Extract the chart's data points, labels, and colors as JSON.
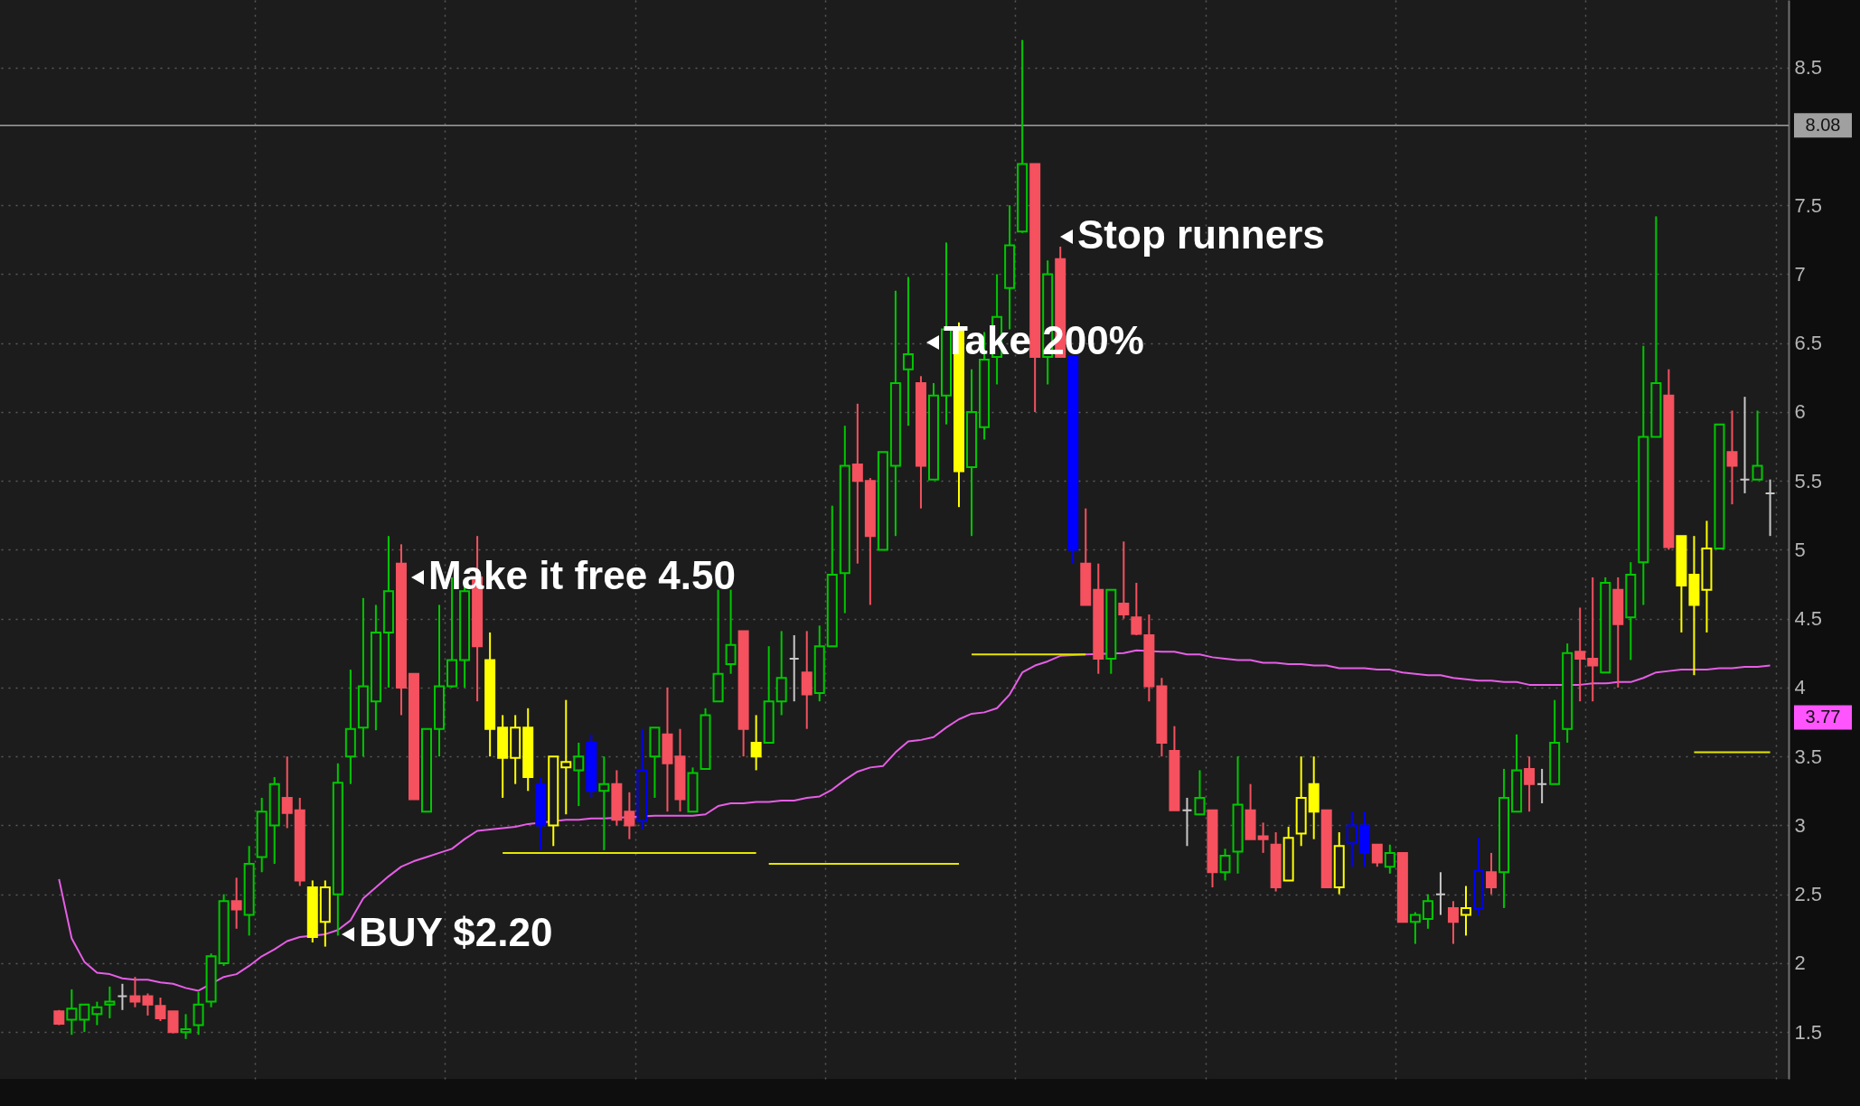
{
  "chart_data": {
    "type": "candlestick",
    "categories": [
      null,
      null,
      null,
      null,
      null,
      null,
      null,
      null,
      null,
      null,
      null,
      null,
      null,
      null,
      null,
      null,
      null,
      null,
      null,
      null,
      null,
      null,
      null,
      null,
      null,
      null,
      null,
      null,
      null,
      null,
      null,
      null,
      null,
      null,
      null,
      null,
      null,
      null,
      null,
      null,
      null,
      null,
      null,
      null,
      null,
      null,
      null,
      null,
      null,
      null,
      null,
      null,
      null,
      null,
      null,
      null,
      null,
      null,
      null,
      null,
      null,
      null,
      null,
      null,
      null,
      null,
      null,
      null,
      null,
      null,
      null,
      null,
      null,
      null,
      null,
      null,
      null,
      null,
      null,
      null,
      null,
      null,
      null,
      null,
      null,
      null,
      null,
      null,
      null,
      null,
      null,
      null,
      null,
      null,
      null,
      null,
      null,
      null,
      null,
      null,
      null,
      null,
      null,
      null,
      null,
      null,
      null,
      null,
      null,
      null,
      null,
      null,
      null,
      null,
      null,
      null,
      null,
      null,
      null,
      null,
      null,
      null,
      null,
      null,
      null,
      null,
      null,
      null,
      null,
      null,
      null,
      null,
      null,
      null,
      null,
      null
    ],
    "ohlc": [
      [
        1.65,
        1.66,
        1.55,
        1.56
      ],
      [
        1.59,
        1.81,
        1.48,
        1.67
      ],
      [
        1.59,
        1.7,
        1.5,
        1.7
      ],
      [
        1.63,
        1.72,
        1.55,
        1.68
      ],
      [
        1.7,
        1.83,
        1.6,
        1.72
      ],
      [
        1.76,
        1.85,
        1.66,
        1.76
      ],
      [
        1.76,
        1.9,
        1.68,
        1.72
      ],
      [
        1.76,
        1.78,
        1.62,
        1.7
      ],
      [
        1.69,
        1.75,
        1.58,
        1.6
      ],
      [
        1.65,
        1.65,
        1.49,
        1.5
      ],
      [
        1.5,
        1.63,
        1.45,
        1.52
      ],
      [
        1.55,
        1.79,
        1.48,
        1.7
      ],
      [
        1.72,
        2.07,
        1.68,
        2.05
      ],
      [
        2.0,
        2.5,
        1.98,
        2.45
      ],
      [
        2.45,
        2.62,
        2.25,
        2.39
      ],
      [
        2.35,
        2.85,
        2.2,
        2.72
      ],
      [
        2.77,
        3.2,
        2.66,
        3.1
      ],
      [
        3.0,
        3.35,
        2.72,
        3.3
      ],
      [
        3.2,
        3.5,
        2.98,
        3.09
      ],
      [
        3.11,
        3.2,
        2.56,
        2.6
      ],
      [
        2.55,
        2.6,
        2.15,
        2.19
      ],
      [
        2.3,
        2.6,
        2.12,
        2.55
      ],
      [
        2.5,
        3.45,
        2.2,
        3.31
      ],
      [
        3.5,
        4.13,
        3.3,
        3.7
      ],
      [
        3.71,
        4.65,
        3.5,
        4.01
      ],
      [
        3.9,
        4.6,
        3.69,
        4.4
      ],
      [
        4.4,
        5.1,
        4.0,
        4.7
      ],
      [
        4.9,
        5.04,
        3.8,
        4.0
      ],
      [
        4.1,
        4.1,
        3.19,
        3.19
      ],
      [
        3.1,
        3.7,
        3.1,
        3.7
      ],
      [
        3.7,
        4.6,
        3.5,
        4.01
      ],
      [
        4.01,
        4.8,
        4.0,
        4.2
      ],
      [
        4.2,
        4.75,
        4.0,
        4.7
      ],
      [
        4.8,
        5.1,
        3.9,
        4.3
      ],
      [
        4.2,
        4.4,
        3.5,
        3.7
      ],
      [
        3.71,
        3.8,
        3.2,
        3.49
      ],
      [
        3.49,
        3.8,
        3.3,
        3.71
      ],
      [
        3.71,
        3.85,
        3.25,
        3.35
      ],
      [
        3.3,
        3.35,
        2.82,
        3.0
      ],
      [
        3.0,
        3.5,
        2.85,
        3.5
      ],
      [
        3.42,
        3.91,
        3.08,
        3.46
      ],
      [
        3.4,
        3.6,
        3.14,
        3.5
      ],
      [
        3.6,
        3.66,
        3.2,
        3.25
      ],
      [
        3.25,
        3.5,
        2.82,
        3.3
      ],
      [
        3.3,
        3.4,
        3.0,
        3.04
      ],
      [
        3.1,
        3.24,
        2.9,
        3.0
      ],
      [
        3.03,
        3.7,
        2.97,
        3.4
      ],
      [
        3.5,
        3.71,
        3.2,
        3.71
      ],
      [
        3.66,
        4.0,
        3.1,
        3.45
      ],
      [
        3.5,
        3.7,
        3.1,
        3.19
      ],
      [
        3.1,
        3.42,
        3.1,
        3.38
      ],
      [
        3.41,
        3.85,
        3.41,
        3.8
      ],
      [
        3.9,
        4.71,
        3.9,
        4.1
      ],
      [
        4.17,
        4.71,
        4.1,
        4.31
      ],
      [
        4.41,
        4.41,
        3.5,
        3.7
      ],
      [
        3.6,
        3.8,
        3.4,
        3.5
      ],
      [
        3.6,
        4.3,
        3.6,
        3.9
      ],
      [
        3.9,
        4.41,
        3.8,
        4.07
      ],
      [
        4.21,
        4.38,
        3.9,
        4.21
      ],
      [
        4.11,
        4.41,
        3.7,
        3.95
      ],
      [
        3.96,
        4.45,
        3.9,
        4.3
      ],
      [
        4.3,
        5.32,
        4.3,
        4.82
      ],
      [
        4.83,
        5.9,
        4.54,
        5.61
      ],
      [
        5.62,
        6.06,
        4.9,
        5.5
      ],
      [
        5.5,
        5.52,
        4.6,
        5.1
      ],
      [
        5.0,
        5.71,
        5.0,
        5.71
      ],
      [
        5.61,
        6.88,
        5.1,
        6.21
      ],
      [
        6.31,
        6.98,
        5.9,
        6.42
      ],
      [
        6.21,
        6.26,
        5.3,
        5.61
      ],
      [
        5.51,
        6.21,
        5.51,
        6.12
      ],
      [
        6.12,
        7.23,
        5.91,
        6.6
      ],
      [
        6.59,
        6.65,
        5.31,
        5.57
      ],
      [
        5.6,
        6.31,
        5.1,
        6.0
      ],
      [
        5.89,
        6.58,
        5.8,
        6.38
      ],
      [
        6.4,
        7.0,
        6.2,
        6.69
      ],
      [
        6.9,
        7.5,
        6.6,
        7.21
      ],
      [
        7.31,
        8.7,
        7.3,
        7.8
      ],
      [
        7.8,
        7.8,
        6.0,
        6.4
      ],
      [
        6.4,
        7.1,
        6.2,
        7.0
      ],
      [
        7.11,
        7.2,
        6.4,
        6.4
      ],
      [
        6.4,
        6.4,
        4.9,
        5.0
      ],
      [
        4.9,
        5.3,
        4.6,
        4.6
      ],
      [
        4.71,
        4.9,
        4.1,
        4.21
      ],
      [
        4.21,
        4.71,
        4.1,
        4.71
      ],
      [
        4.61,
        5.06,
        4.5,
        4.53
      ],
      [
        4.51,
        4.76,
        4.38,
        4.39
      ],
      [
        4.38,
        4.53,
        3.9,
        4.01
      ],
      [
        4.01,
        4.07,
        3.5,
        3.6
      ],
      [
        3.54,
        3.72,
        3.11,
        3.11
      ],
      [
        3.11,
        3.2,
        2.85,
        3.11
      ],
      [
        3.08,
        3.4,
        3.08,
        3.2
      ],
      [
        3.11,
        3.11,
        2.55,
        2.66
      ],
      [
        2.66,
        2.83,
        2.6,
        2.78
      ],
      [
        2.81,
        3.5,
        2.65,
        3.15
      ],
      [
        3.11,
        3.3,
        2.9,
        2.9
      ],
      [
        2.92,
        3.02,
        2.8,
        2.9
      ],
      [
        2.86,
        2.95,
        2.52,
        2.55
      ],
      [
        2.6,
        2.99,
        2.6,
        2.91
      ],
      [
        2.94,
        3.5,
        2.85,
        3.2
      ],
      [
        3.3,
        3.5,
        2.9,
        3.1
      ],
      [
        3.11,
        3.11,
        2.55,
        2.55
      ],
      [
        2.55,
        2.95,
        2.5,
        2.85
      ],
      [
        2.87,
        3.1,
        2.7,
        3.0
      ],
      [
        3.0,
        3.1,
        2.7,
        2.8
      ],
      [
        2.86,
        2.86,
        2.7,
        2.73
      ],
      [
        2.7,
        2.86,
        2.65,
        2.8
      ],
      [
        2.8,
        2.8,
        2.3,
        2.3
      ],
      [
        2.3,
        2.37,
        2.14,
        2.35
      ],
      [
        2.32,
        2.5,
        2.25,
        2.45
      ],
      [
        2.5,
        2.66,
        2.35,
        2.5
      ],
      [
        2.4,
        2.45,
        2.14,
        2.3
      ],
      [
        2.35,
        2.56,
        2.2,
        2.4
      ],
      [
        2.4,
        2.91,
        2.35,
        2.67
      ],
      [
        2.66,
        2.8,
        2.5,
        2.55
      ],
      [
        2.66,
        3.41,
        2.4,
        3.2
      ],
      [
        3.1,
        3.66,
        3.1,
        3.4
      ],
      [
        3.41,
        3.5,
        3.1,
        3.3
      ],
      [
        3.3,
        3.41,
        3.16,
        3.3
      ],
      [
        3.3,
        3.91,
        3.3,
        3.6
      ],
      [
        3.7,
        4.32,
        3.6,
        4.25
      ],
      [
        4.26,
        4.58,
        3.9,
        4.21
      ],
      [
        4.21,
        4.8,
        3.9,
        4.16
      ],
      [
        4.11,
        4.8,
        4.11,
        4.76
      ],
      [
        4.71,
        4.8,
        4.0,
        4.46
      ],
      [
        4.51,
        4.91,
        4.2,
        4.82
      ],
      [
        4.91,
        6.48,
        4.6,
        5.82
      ],
      [
        5.82,
        7.42,
        5.82,
        6.21
      ],
      [
        6.12,
        6.31,
        5.0,
        5.02
      ],
      [
        5.1,
        5.1,
        4.4,
        4.74
      ],
      [
        4.82,
        5.1,
        4.09,
        4.6
      ],
      [
        4.71,
        5.21,
        4.4,
        5.01
      ],
      [
        5.01,
        5.91,
        5.01,
        5.91
      ],
      [
        5.71,
        6.01,
        5.33,
        5.61
      ],
      [
        5.51,
        6.11,
        5.41,
        5.51
      ],
      [
        5.51,
        6.01,
        5.51,
        5.61
      ],
      [
        5.41,
        5.51,
        5.1,
        5.41
      ]
    ],
    "colors": [
      "#f5515f",
      "#00c800",
      "#00c800",
      "#00c800",
      "#00c800",
      "#c8c8c8",
      "#f5515f",
      "#f5515f",
      "#f5515f",
      "#f5515f",
      "#00c800",
      "#00c800",
      "#00c800",
      "#00c800",
      "#f5515f",
      "#00c800",
      "#00c800",
      "#00c800",
      "#f5515f",
      "#f5515f",
      "#ffff00",
      "#ffff00",
      "#00c800",
      "#00c800",
      "#00c800",
      "#00c800",
      "#00c800",
      "#f5515f",
      "#f5515f",
      "#00c800",
      "#00c800",
      "#00c800",
      "#00c800",
      "#f5515f",
      "#ffff00",
      "#ffff00",
      "#ffff00",
      "#ffff00",
      "#0000ff",
      "#ffff00",
      "#ffff00",
      "#00c800",
      "#0000ff",
      "#00c800",
      "#f5515f",
      "#f5515f",
      "#0000ff",
      "#00c800",
      "#f5515f",
      "#f5515f",
      "#00c800",
      "#00c800",
      "#00c800",
      "#00c800",
      "#f5515f",
      "#ffff00",
      "#00c800",
      "#00c800",
      "#c8c8c8",
      "#f5515f",
      "#00c800",
      "#00c800",
      "#00c800",
      "#f5515f",
      "#f5515f",
      "#00c800",
      "#00c800",
      "#00c800",
      "#f5515f",
      "#00c800",
      "#00c800",
      "#ffff00",
      "#00c800",
      "#00c800",
      "#00c800",
      "#00c800",
      "#00c800",
      "#f5515f",
      "#00c800",
      "#f5515f",
      "#0000ff",
      "#f5515f",
      "#f5515f",
      "#00c800",
      "#f5515f",
      "#f5515f",
      "#f5515f",
      "#f5515f",
      "#f5515f",
      "#c8c8c8",
      "#00c800",
      "#f5515f",
      "#00c800",
      "#00c800",
      "#f5515f",
      "#f5515f",
      "#f5515f",
      "#ffff00",
      "#ffff00",
      "#ffff00",
      "#f5515f",
      "#ffff00",
      "#0000ff",
      "#0000ff",
      "#f5515f",
      "#00c800",
      "#f5515f",
      "#00c800",
      "#00c800",
      "#c8c8c8",
      "#f5515f",
      "#ffff00",
      "#0000ff",
      "#f5515f",
      "#00c800",
      "#00c800",
      "#f5515f",
      "#c8c8c8",
      "#00c800",
      "#00c800",
      "#f5515f",
      "#f5515f",
      "#00c800",
      "#f5515f",
      "#00c800",
      "#00c800",
      "#00c800",
      "#f5515f",
      "#ffff00",
      "#ffff00",
      "#ffff00",
      "#00c800",
      "#f5515f",
      "#c8c8c8",
      "#00c800",
      "#c8c8c8"
    ],
    "series": [
      {
        "type": "line",
        "color": "#e65ee6",
        "values": [
          2.61,
          2.18,
          2.01,
          1.93,
          1.92,
          1.89,
          1.88,
          1.88,
          1.86,
          1.85,
          1.82,
          1.8,
          null,
          1.9,
          1.92,
          1.98,
          2.05,
          2.1,
          2.16,
          2.19,
          null,
          2.21,
          2.24,
          2.31,
          2.47,
          2.55,
          2.63,
          2.7,
          2.74,
          2.77,
          2.8,
          2.83,
          2.9,
          2.96,
          2.97,
          2.98,
          2.99,
          3.01,
          null,
          null,
          3.04,
          3.04,
          3.05,
          3.05,
          null,
          null,
          null,
          3.07,
          3.07,
          3.07,
          3.07,
          3.08,
          3.14,
          3.16,
          3.16,
          3.17,
          3.17,
          3.18,
          3.18,
          3.2,
          3.21,
          3.26,
          3.33,
          3.39,
          3.42,
          3.43,
          3.53,
          3.61,
          3.62,
          3.64,
          3.71,
          3.77,
          3.81,
          3.82,
          3.85,
          3.95,
          4.11,
          4.16,
          4.19,
          4.23,
          null,
          4.24,
          null,
          null,
          4.25,
          4.27,
          null,
          4.26,
          4.26,
          4.24,
          4.24,
          4.22,
          4.21,
          4.2,
          4.2,
          4.18,
          4.18,
          4.17,
          4.17,
          4.16,
          4.16,
          4.14,
          4.14,
          4.14,
          4.13,
          4.13,
          4.11,
          4.1,
          4.09,
          4.09,
          4.07,
          4.06,
          4.05,
          4.05,
          4.04,
          4.04,
          4.02,
          4.02,
          4.02,
          null,
          4.02,
          4.03,
          4.03,
          4.04,
          4.04,
          4.07,
          4.11,
          4.12,
          4.13,
          4.13,
          4.13,
          4.14,
          4.14,
          4.15,
          4.15,
          4.16
        ]
      },
      {
        "type": "line",
        "color": "#e6e600",
        "values": [
          null,
          null,
          null,
          null,
          null,
          null,
          null,
          null,
          null,
          null,
          null,
          null,
          null,
          null,
          null,
          null,
          null,
          null,
          null,
          null,
          null,
          null,
          null,
          null,
          null,
          null,
          null,
          null,
          null,
          null,
          null,
          null,
          null,
          null,
          null,
          2.8,
          2.8,
          2.8,
          2.8,
          2.8,
          2.8,
          2.8,
          2.8,
          2.8,
          2.8,
          2.8,
          2.8,
          2.8,
          2.8,
          2.8,
          2.8,
          2.8,
          2.8,
          2.8,
          2.8,
          2.8,
          null,
          null,
          null,
          null,
          null,
          null,
          null,
          null,
          null,
          null,
          null,
          null,
          null,
          null,
          null,
          null,
          null,
          null,
          null,
          null,
          null,
          null,
          null,
          null,
          null,
          null,
          null,
          null,
          null,
          null,
          null,
          null,
          null,
          null,
          null,
          null,
          null,
          null,
          null,
          null,
          null,
          null,
          null,
          null,
          null,
          null,
          null,
          null,
          null,
          null,
          null,
          null,
          null,
          null,
          null,
          null,
          null,
          null,
          null,
          null,
          null,
          null,
          null,
          null,
          null,
          null,
          null,
          null,
          null,
          null,
          null,
          null,
          null,
          null,
          null,
          null,
          null,
          null,
          null,
          null
        ]
      },
      {
        "type": "line",
        "color": "#e6e600",
        "values": [
          null,
          null,
          null,
          null,
          null,
          null,
          null,
          null,
          null,
          null,
          null,
          null,
          null,
          null,
          null,
          null,
          null,
          null,
          null,
          null,
          null,
          null,
          null,
          null,
          null,
          null,
          null,
          null,
          null,
          null,
          null,
          null,
          null,
          null,
          null,
          null,
          null,
          null,
          null,
          null,
          null,
          null,
          null,
          null,
          null,
          null,
          null,
          null,
          null,
          null,
          null,
          null,
          null,
          null,
          null,
          null,
          2.72,
          2.72,
          2.72,
          2.72,
          2.72,
          2.72,
          2.72,
          2.72,
          2.72,
          2.72,
          2.72,
          2.72,
          2.72,
          2.72,
          2.72,
          2.72,
          null,
          null,
          null,
          null,
          null,
          null,
          null,
          null,
          null,
          null,
          null,
          null,
          null,
          null,
          null,
          null,
          null,
          null,
          null,
          null,
          null,
          null,
          null,
          null,
          null,
          null,
          null,
          null,
          null,
          null,
          null,
          null,
          null,
          null,
          null,
          null,
          null,
          null,
          null,
          null,
          null,
          null,
          null,
          null,
          null,
          null,
          null,
          null,
          null,
          null,
          null,
          null,
          null,
          null,
          null,
          null,
          null,
          null,
          null,
          null,
          null,
          null,
          null,
          null
        ]
      },
      {
        "type": "line",
        "color": "#e6e600",
        "values": [
          null,
          null,
          null,
          null,
          null,
          null,
          null,
          null,
          null,
          null,
          null,
          null,
          null,
          null,
          null,
          null,
          null,
          null,
          null,
          null,
          null,
          null,
          null,
          null,
          null,
          null,
          null,
          null,
          null,
          null,
          null,
          null,
          null,
          null,
          null,
          null,
          null,
          null,
          null,
          null,
          null,
          null,
          null,
          null,
          null,
          null,
          null,
          null,
          null,
          null,
          null,
          null,
          null,
          null,
          null,
          null,
          null,
          null,
          null,
          null,
          null,
          null,
          null,
          null,
          null,
          null,
          null,
          null,
          null,
          null,
          null,
          null,
          4.24,
          4.24,
          4.24,
          4.24,
          4.24,
          4.24,
          4.24,
          4.24,
          4.24,
          4.24,
          null,
          null,
          null,
          null,
          null,
          null,
          null,
          null,
          null,
          null,
          null,
          null,
          null,
          null,
          null,
          null,
          null,
          null,
          null,
          null,
          null,
          null,
          null,
          null,
          null,
          null,
          null,
          null,
          null,
          null,
          null,
          null,
          null,
          null,
          null,
          null,
          null,
          null,
          null,
          null,
          null,
          null,
          null,
          null,
          null,
          null,
          null,
          null,
          null,
          null,
          null,
          null,
          null,
          null
        ]
      },
      {
        "type": "line",
        "color": "#e6e600",
        "values": [
          null,
          null,
          null,
          null,
          null,
          null,
          null,
          null,
          null,
          null,
          null,
          null,
          null,
          null,
          null,
          null,
          null,
          null,
          null,
          null,
          null,
          null,
          null,
          null,
          null,
          null,
          null,
          null,
          null,
          null,
          null,
          null,
          null,
          null,
          null,
          null,
          null,
          null,
          null,
          null,
          null,
          null,
          null,
          null,
          null,
          null,
          null,
          null,
          null,
          null,
          null,
          null,
          null,
          null,
          null,
          null,
          null,
          null,
          null,
          null,
          null,
          null,
          null,
          null,
          null,
          null,
          null,
          null,
          null,
          null,
          null,
          null,
          null,
          null,
          null,
          null,
          null,
          null,
          null,
          null,
          null,
          null,
          null,
          null,
          null,
          null,
          null,
          null,
          null,
          null,
          null,
          null,
          null,
          null,
          null,
          null,
          null,
          null,
          null,
          null,
          null,
          null,
          null,
          null,
          null,
          null,
          null,
          null,
          null,
          null,
          null,
          null,
          null,
          null,
          null,
          null,
          null,
          null,
          null,
          null,
          null,
          null,
          null,
          null,
          null,
          null,
          null,
          null,
          null,
          3.53,
          3.53,
          3.53,
          3.53,
          3.53,
          3.53,
          3.53
        ]
      }
    ],
    "ylim": [
      1.16,
      8.99
    ],
    "yticks": [
      1.5,
      2,
      2.5,
      3,
      3.5,
      4,
      4.5,
      5,
      5.5,
      6,
      6.5,
      7,
      7.5,
      8.5
    ],
    "grid": true,
    "tick_labels": "y",
    "ref_lines": [
      {
        "axis": "y",
        "value": 8.08,
        "label": "8.08",
        "color": "#a0a0a0"
      }
    ],
    "annotations": [
      "BUY $2.20",
      "Make it free 4.50",
      "Take 200%",
      "Stop runners",
      "3.77"
    ]
  }
}
